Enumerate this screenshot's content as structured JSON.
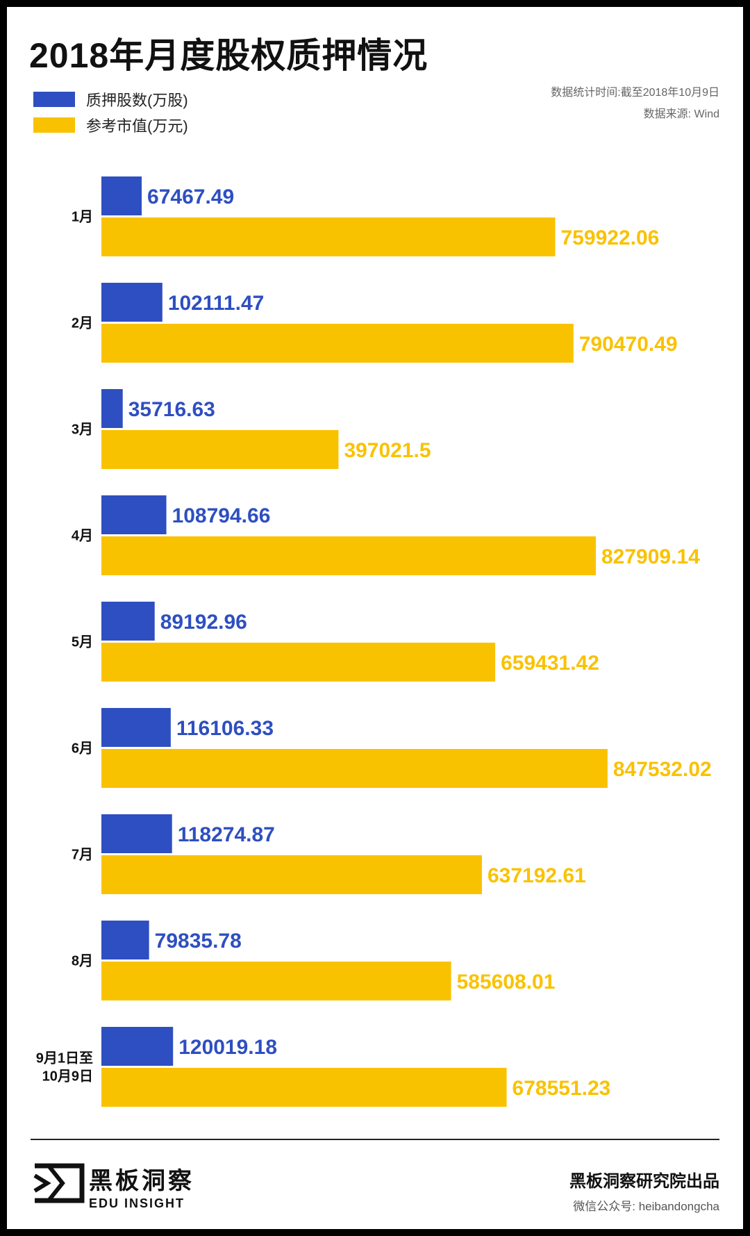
{
  "title": "2018年月度股权质押情况",
  "meta": {
    "stat_time": "数据统计时间:截至2018年10月9日",
    "source": "数据来源: Wind"
  },
  "colors": {
    "shares": "#2E4FC1",
    "value": "#F9C200"
  },
  "chart_data": {
    "type": "bar",
    "orientation": "horizontal",
    "title": "2018年月度股权质押情况",
    "categories": [
      "1月",
      "2月",
      "3月",
      "4月",
      "5月",
      "6月",
      "7月",
      "8月",
      "9月1日至\n10月9日"
    ],
    "series": [
      {
        "name": "质押股数(万股)",
        "color": "#2E4FC1",
        "values": [
          67467.49,
          102111.47,
          35716.63,
          108794.66,
          89192.96,
          116106.33,
          118274.87,
          79835.78,
          120019.18
        ],
        "labels": [
          "67467.49",
          "102111.47",
          "35716.63",
          "108794.66",
          "89192.96",
          "116106.33",
          "118274.87",
          "79835.78",
          "120019.18"
        ],
        "scale_max": 1000000
      },
      {
        "name": "参考市值(万元)",
        "color": "#F9C200",
        "values": [
          759922.06,
          790470.49,
          397021.5,
          827909.14,
          659431.42,
          847532.02,
          637192.61,
          585608.01,
          678551.23
        ],
        "labels": [
          "759922.06",
          "790470.49",
          "397021.5",
          "827909.14",
          "659431.42",
          "847532.02",
          "637192.61",
          "585608.01",
          "678551.23"
        ],
        "scale_max": 1000000
      }
    ],
    "xlim": [
      0,
      1000000
    ],
    "grid": false,
    "legend": "top-left"
  },
  "footer": {
    "brand_cn": "黑板洞察",
    "brand_en": "EDU INSIGHT",
    "publisher": "黑板洞察研究院出品",
    "wechat": "微信公众号: heibandongcha"
  }
}
